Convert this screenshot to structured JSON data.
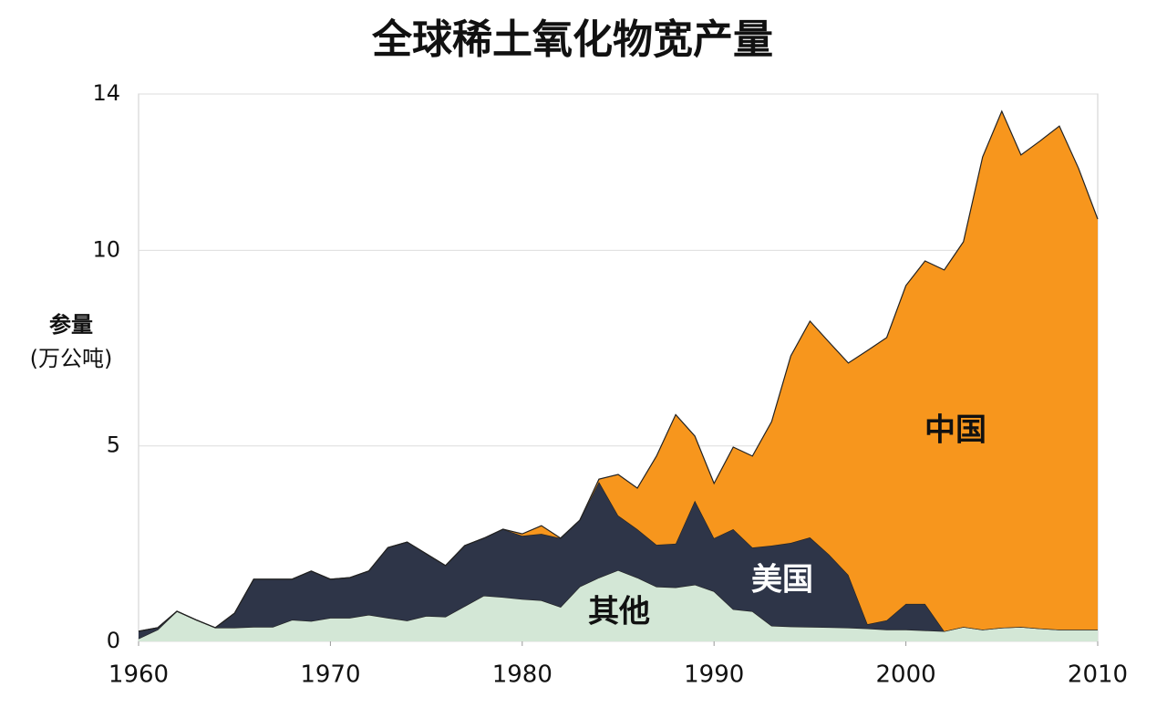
{
  "chart_data": {
    "type": "stacked_area",
    "title": "全球稀土氧化物宽产量",
    "y_label": [
      "参量",
      "(万公吨)"
    ],
    "x": [
      1960,
      1961,
      1962,
      1963,
      1964,
      1965,
      1966,
      1967,
      1968,
      1969,
      1970,
      1971,
      1972,
      1973,
      1974,
      1975,
      1976,
      1977,
      1978,
      1979,
      1980,
      1981,
      1982,
      1983,
      1984,
      1985,
      1986,
      1987,
      1988,
      1989,
      1990,
      1991,
      1992,
      1993,
      1994,
      1995,
      1996,
      1997,
      1998,
      1999,
      2000,
      2001,
      2002,
      2003,
      2004,
      2005,
      2006,
      2007,
      2008,
      2009,
      2010
    ],
    "series": [
      {
        "name": "其他",
        "color": "#d3e7d6",
        "values": [
          0.07,
          0.3,
          0.77,
          0.55,
          0.35,
          0.35,
          0.37,
          0.37,
          0.55,
          0.52,
          0.6,
          0.6,
          0.68,
          0.6,
          0.53,
          0.65,
          0.63,
          0.9,
          1.17,
          1.13,
          1.08,
          1.05,
          0.88,
          1.4,
          1.63,
          1.82,
          1.63,
          1.4,
          1.38,
          1.45,
          1.28,
          0.82,
          0.77,
          0.4,
          0.38,
          0.37,
          0.36,
          0.35,
          0.33,
          0.3,
          0.3,
          0.28,
          0.26,
          0.37,
          0.3,
          0.35,
          0.37,
          0.33,
          0.3,
          0.3,
          0.3
        ]
      },
      {
        "name": "美国",
        "color": "#2e3548",
        "values": [
          0.19,
          0.05,
          0,
          0,
          0,
          0.37,
          1.22,
          1.22,
          1.04,
          1.28,
          0.99,
          1.03,
          1.12,
          1.8,
          2.01,
          1.59,
          1.31,
          1.55,
          1.47,
          1.74,
          1.62,
          1.7,
          1.76,
          1.7,
          2.45,
          1.4,
          1.24,
          1.07,
          1.12,
          2.15,
          1.36,
          2.05,
          1.63,
          2.05,
          2.14,
          2.29,
          1.86,
          1.35,
          0.11,
          0.24,
          0.66,
          0.68,
          0,
          0,
          0,
          0,
          0,
          0,
          0,
          0,
          0
        ]
      },
      {
        "name": "中国",
        "color": "#f7961d",
        "values": [
          0,
          0,
          0,
          0,
          0,
          0,
          0,
          0,
          0,
          0,
          0,
          0,
          0,
          0,
          0,
          0,
          0,
          0,
          0,
          0,
          0.05,
          0.21,
          0,
          0,
          0.07,
          1.05,
          1.05,
          2.27,
          3.3,
          1.65,
          1.4,
          2.1,
          2.34,
          3.17,
          4.78,
          5.53,
          5.43,
          5.42,
          7.0,
          7.23,
          8.14,
          8.77,
          9.24,
          9.85,
          12.09,
          13.21,
          12.07,
          12.47,
          12.88,
          11.8,
          10.5
        ]
      }
    ],
    "xlim": [
      1960,
      2010
    ],
    "xticks": [
      1960,
      1970,
      1980,
      1990,
      2000,
      2010
    ],
    "ylim": [
      0,
      14
    ],
    "yticks": [
      0,
      5,
      10,
      14
    ],
    "grid": true
  }
}
